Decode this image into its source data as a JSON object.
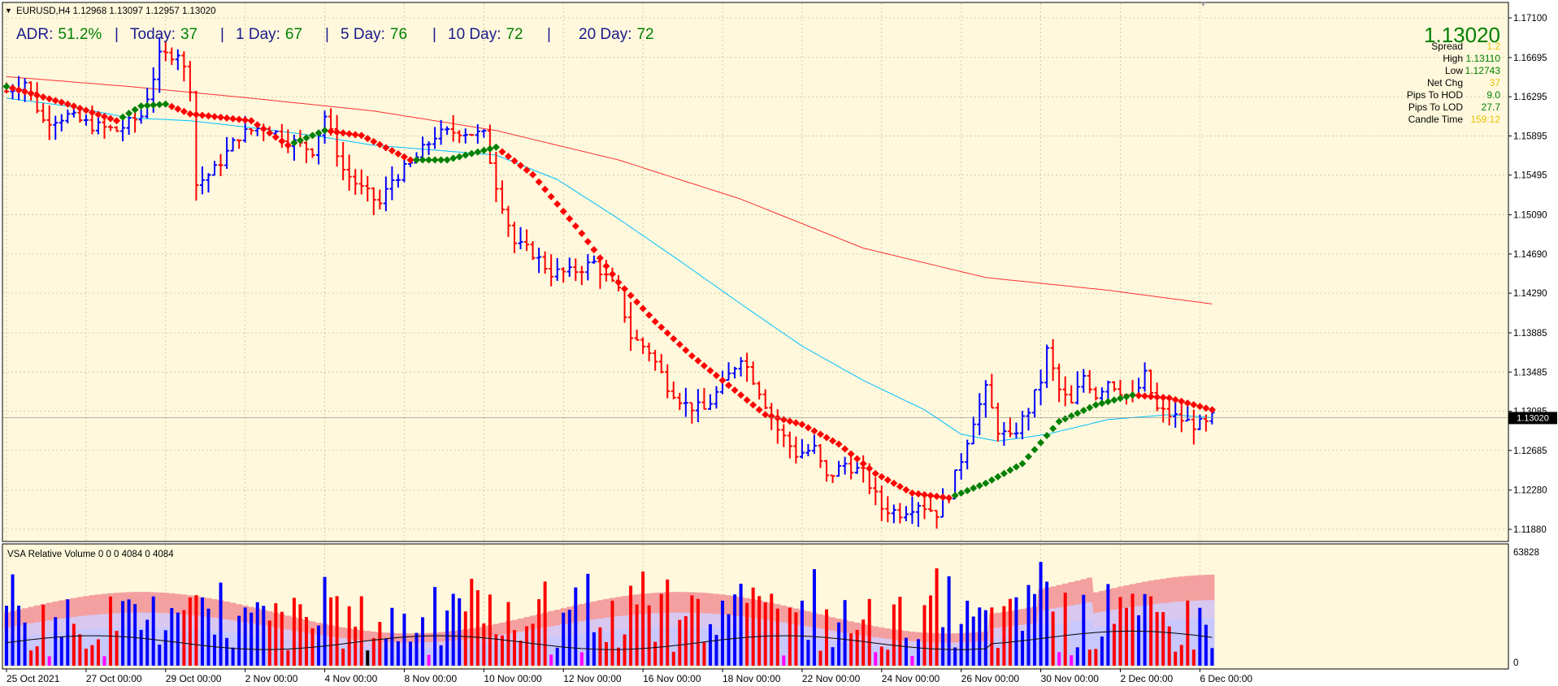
{
  "colors": {
    "background": "#fff8dc",
    "grid": "#c8c0a0",
    "axis": "#000000",
    "bull": "#0000ff",
    "bear": "#ff0000",
    "dot_bull": "#008000",
    "dot_bear": "#ff0000",
    "ema_fast": "#00bfff",
    "ema_slow": "#ff3030",
    "adr_green": "#008000",
    "adr_label": "#1a1a8c",
    "gold": "#e6c200",
    "vol_band_upper": "#f4a0a0",
    "vol_band_mid": "#d8c8f0",
    "vol_band_low": "#c8c8ff",
    "vol_magenta": "#ff00ff",
    "vol_black": "#000000",
    "price_tag_bg": "#000000"
  },
  "header": {
    "symbol_text": "EURUSD,H4  1.12968 1.13097 1.12957 1.13020"
  },
  "adr": {
    "label": "ADR:",
    "value": "51.2%",
    "items": [
      {
        "label": "Today:",
        "value": "37"
      },
      {
        "label": "1 Day:",
        "value": "67"
      },
      {
        "label": "5 Day:",
        "value": "76"
      },
      {
        "label": "10 Day:",
        "value": "72"
      },
      {
        "label": "20 Day:",
        "value": "72"
      }
    ],
    "sep": "|"
  },
  "info_panel": {
    "price": "1.13020",
    "rows": [
      {
        "label": "Spread",
        "value": "1.2",
        "color": "#e6c200"
      },
      {
        "label": "High",
        "value": "1.13110",
        "color": "#008000"
      },
      {
        "label": "Low",
        "value": "1.12743",
        "color": "#008000"
      },
      {
        "label": "Net Chg",
        "value": "37",
        "color": "#e6c200"
      },
      {
        "label": "Pips To HOD",
        "value": "9.0",
        "color": "#008000"
      },
      {
        "label": "Pips To LOD",
        "value": "27.7",
        "color": "#008000"
      },
      {
        "label": "Candle Time",
        "value": "159:12",
        "color": "#e6c200"
      }
    ]
  },
  "price_tag": "1.13020",
  "volume_panel": {
    "title": "VSA Relative Volume 0 0 0 4084 0 4084",
    "max_label": "63828",
    "min_label": "0"
  },
  "chart_data": {
    "type": "bar",
    "chart_subtype": "ohlc_price_bars_with_volume",
    "symbol": "EURUSD",
    "timeframe": "H4",
    "y_ticks": [
      "1.17100",
      "1.16695",
      "1.16295",
      "1.15895",
      "1.15495",
      "1.15090",
      "1.14690",
      "1.14290",
      "1.13885",
      "1.13485",
      "1.13085",
      "1.12685",
      "1.12280",
      "1.11880"
    ],
    "ylim": [
      1.116,
      1.1725
    ],
    "x_tick_labels": [
      "25 Oct 2021",
      "27 Oct 00:00",
      "29 Oct 00:00",
      "2 Nov 00:00",
      "4 Nov 00:00",
      "8 Nov 00:00",
      "10 Nov 00:00",
      "12 Nov 00:00",
      "16 Nov 00:00",
      "18 Nov 00:00",
      "22 Nov 00:00",
      "24 Nov 00:00",
      "26 Nov 00:00",
      "30 Nov 00:00",
      "2 Dec 00:00",
      "6 Dec 00:00"
    ],
    "x_tick_index": [
      0,
      13,
      26,
      39,
      52,
      65,
      78,
      91,
      104,
      117,
      130,
      143,
      156,
      169,
      182,
      195
    ],
    "bar_count": 198,
    "close_anchors": [
      [
        0,
        1.1635
      ],
      [
        3,
        1.1645
      ],
      [
        6,
        1.1605
      ],
      [
        10,
        1.161
      ],
      [
        14,
        1.16
      ],
      [
        18,
        1.1595
      ],
      [
        22,
        1.161
      ],
      [
        25,
        1.167
      ],
      [
        28,
        1.1675
      ],
      [
        30,
        1.164
      ],
      [
        31,
        1.154
      ],
      [
        34,
        1.1555
      ],
      [
        38,
        1.159
      ],
      [
        42,
        1.16
      ],
      [
        46,
        1.1585
      ],
      [
        50,
        1.1575
      ],
      [
        52,
        1.161
      ],
      [
        55,
        1.1555
      ],
      [
        58,
        1.1535
      ],
      [
        61,
        1.152
      ],
      [
        63,
        1.1545
      ],
      [
        66,
        1.156
      ],
      [
        70,
        1.159
      ],
      [
        74,
        1.1595
      ],
      [
        78,
        1.159
      ],
      [
        80,
        1.154
      ],
      [
        83,
        1.148
      ],
      [
        86,
        1.147
      ],
      [
        89,
        1.145
      ],
      [
        92,
        1.145
      ],
      [
        96,
        1.146
      ],
      [
        100,
        1.143
      ],
      [
        102,
        1.1385
      ],
      [
        105,
        1.137
      ],
      [
        108,
        1.1335
      ],
      [
        111,
        1.1315
      ],
      [
        114,
        1.131
      ],
      [
        117,
        1.1335
      ],
      [
        120,
        1.1365
      ],
      [
        123,
        1.133
      ],
      [
        126,
        1.129
      ],
      [
        129,
        1.1265
      ],
      [
        132,
        1.127
      ],
      [
        134,
        1.124
      ],
      [
        137,
        1.1255
      ],
      [
        140,
        1.1245
      ],
      [
        143,
        1.121
      ],
      [
        146,
        1.1205
      ],
      [
        149,
        1.1215
      ],
      [
        152,
        1.1205
      ],
      [
        154,
        1.1225
      ],
      [
        156,
        1.126
      ],
      [
        158,
        1.13
      ],
      [
        160,
        1.133
      ],
      [
        162,
        1.129
      ],
      [
        164,
        1.128
      ],
      [
        167,
        1.131
      ],
      [
        169,
        1.134
      ],
      [
        170,
        1.137
      ],
      [
        172,
        1.133
      ],
      [
        174,
        1.1315
      ],
      [
        176,
        1.1345
      ],
      [
        178,
        1.1325
      ],
      [
        180,
        1.134
      ],
      [
        182,
        1.133
      ],
      [
        184,
        1.132
      ],
      [
        186,
        1.1345
      ],
      [
        188,
        1.131
      ],
      [
        190,
        1.1305
      ],
      [
        192,
        1.13
      ],
      [
        194,
        1.1295
      ],
      [
        196,
        1.1295
      ],
      [
        197,
        1.1302
      ]
    ],
    "signal_line_anchors": [
      [
        0,
        1.164
      ],
      [
        10,
        1.1622
      ],
      [
        18,
        1.1605
      ],
      [
        22,
        1.162
      ],
      [
        26,
        1.1622
      ],
      [
        30,
        1.1612
      ],
      [
        40,
        1.1605
      ],
      [
        46,
        1.158
      ],
      [
        52,
        1.1595
      ],
      [
        58,
        1.159
      ],
      [
        66,
        1.1565
      ],
      [
        72,
        1.1565
      ],
      [
        80,
        1.1578
      ],
      [
        86,
        1.155
      ],
      [
        94,
        1.149
      ],
      [
        100,
        1.144
      ],
      [
        106,
        1.14
      ],
      [
        112,
        1.1365
      ],
      [
        118,
        1.1335
      ],
      [
        124,
        1.1305
      ],
      [
        130,
        1.1295
      ],
      [
        136,
        1.1275
      ],
      [
        142,
        1.1245
      ],
      [
        148,
        1.1225
      ],
      [
        154,
        1.122
      ],
      [
        160,
        1.1235
      ],
      [
        166,
        1.1255
      ],
      [
        172,
        1.1298
      ],
      [
        178,
        1.1315
      ],
      [
        184,
        1.1325
      ],
      [
        190,
        1.1322
      ],
      [
        197,
        1.131
      ]
    ],
    "ema_fast_anchors": [
      [
        0,
        1.1628
      ],
      [
        10,
        1.162
      ],
      [
        20,
        1.1608
      ],
      [
        30,
        1.1605
      ],
      [
        40,
        1.1598
      ],
      [
        50,
        1.159
      ],
      [
        60,
        1.158
      ],
      [
        70,
        1.1575
      ],
      [
        80,
        1.157
      ],
      [
        90,
        1.1545
      ],
      [
        100,
        1.1505
      ],
      [
        110,
        1.1462
      ],
      [
        120,
        1.1418
      ],
      [
        130,
        1.1375
      ],
      [
        140,
        1.134
      ],
      [
        150,
        1.131
      ],
      [
        156,
        1.1285
      ],
      [
        162,
        1.1278
      ],
      [
        170,
        1.1285
      ],
      [
        180,
        1.13
      ],
      [
        190,
        1.1305
      ],
      [
        197,
        1.1302
      ]
    ],
    "ema_slow_anchors": [
      [
        0,
        1.165
      ],
      [
        20,
        1.164
      ],
      [
        40,
        1.1628
      ],
      [
        60,
        1.1615
      ],
      [
        80,
        1.1595
      ],
      [
        100,
        1.1565
      ],
      [
        120,
        1.1525
      ],
      [
        140,
        1.1475
      ],
      [
        160,
        1.1445
      ],
      [
        180,
        1.1432
      ],
      [
        197,
        1.1418
      ]
    ],
    "volume_max": 63828,
    "volume_seed": 7
  }
}
